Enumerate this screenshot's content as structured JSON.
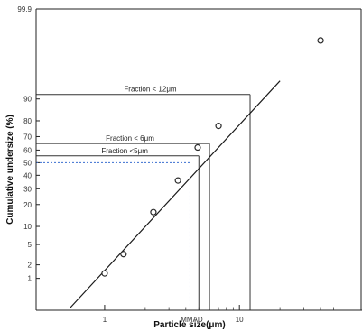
{
  "chart_data": {
    "type": "scatter",
    "x_scale": "log",
    "y_scale": "probability",
    "xlabel": "Particle size(μm)",
    "ylabel": "Cumulative undersize (%)",
    "xlim": [
      0.31,
      80
    ],
    "ylim": [
      0.15,
      99.9
    ],
    "x_ticks": [
      {
        "value": 1,
        "label": "1"
      },
      {
        "value": 10,
        "label": "10"
      }
    ],
    "x_minor_ticks": [
      2,
      3,
      4,
      5,
      6,
      7,
      8,
      9,
      20,
      30,
      40,
      50
    ],
    "y_ticks": [
      {
        "value": 1,
        "label": "1"
      },
      {
        "value": 2,
        "label": "2"
      },
      {
        "value": 5,
        "label": "5"
      },
      {
        "value": 10,
        "label": "10"
      },
      {
        "value": 20,
        "label": "20"
      },
      {
        "value": 30,
        "label": "30"
      },
      {
        "value": 40,
        "label": "40"
      },
      {
        "value": 50,
        "label": "50"
      },
      {
        "value": 60,
        "label": "60"
      },
      {
        "value": 70,
        "label": "70"
      },
      {
        "value": 80,
        "label": "80"
      },
      {
        "value": 90,
        "label": "90"
      },
      {
        "value": 99.9,
        "label": "99.9"
      }
    ],
    "points": [
      {
        "x": 1.0,
        "y": 1.3
      },
      {
        "x": 1.38,
        "y": 3.3
      },
      {
        "x": 2.3,
        "y": 16
      },
      {
        "x": 3.5,
        "y": 36
      },
      {
        "x": 4.9,
        "y": 62
      },
      {
        "x": 7.0,
        "y": 77
      },
      {
        "x": 40,
        "y": 99.3
      }
    ],
    "fit_line": {
      "x": [
        0.55,
        20
      ],
      "y": [
        0.17,
        95
      ]
    },
    "annotations": [
      {
        "label": "Fraction < 12μm",
        "x": 12,
        "y": 91.5,
        "style": "solid"
      },
      {
        "label": "Fraction < 6μm",
        "x": 6,
        "y": 65,
        "style": "solid"
      },
      {
        "label": "Fraction <5μm",
        "x": 5,
        "y": 55.5,
        "style": "solid"
      },
      {
        "label": "MMAD",
        "x": 4.3,
        "y": 50,
        "style": "dotted"
      }
    ],
    "grid": false,
    "colors": {
      "points": "#2a2a2a",
      "fit_line": "#1a1a1a",
      "guide_lines": "#333333",
      "mmad_lines": "#3a6fd0"
    }
  }
}
